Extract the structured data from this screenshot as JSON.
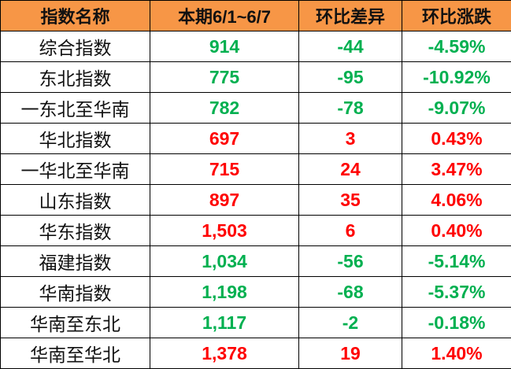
{
  "chart_data": {
    "type": "table",
    "columns": [
      "指数名称",
      "本期6/1~6/7",
      "环比差异",
      "环比涨跌"
    ],
    "rows": [
      {
        "name": "综合指数",
        "value": "914",
        "diff": "-44",
        "pct": "-4.59%",
        "trend": "down"
      },
      {
        "name": "东北指数",
        "value": "775",
        "diff": "-95",
        "pct": "-10.92%",
        "trend": "down"
      },
      {
        "name": "一东北至华南",
        "value": "782",
        "diff": "-78",
        "pct": "-9.07%",
        "trend": "down"
      },
      {
        "name": "华北指数",
        "value": "697",
        "diff": "3",
        "pct": "0.43%",
        "trend": "up"
      },
      {
        "name": "一华北至华南",
        "value": "715",
        "diff": "24",
        "pct": "3.47%",
        "trend": "up"
      },
      {
        "name": "山东指数",
        "value": "897",
        "diff": "35",
        "pct": "4.06%",
        "trend": "up"
      },
      {
        "name": "华东指数",
        "value": "1,503",
        "diff": "6",
        "pct": "0.40%",
        "trend": "up"
      },
      {
        "name": "福建指数",
        "value": "1,034",
        "diff": "-56",
        "pct": "-5.14%",
        "trend": "down"
      },
      {
        "name": "华南指数",
        "value": "1,198",
        "diff": "-68",
        "pct": "-5.37%",
        "trend": "down"
      },
      {
        "name": "华南至东北",
        "value": "1,117",
        "diff": "-2",
        "pct": "-0.18%",
        "trend": "down"
      },
      {
        "name": "华南至华北",
        "value": "1,378",
        "diff": "19",
        "pct": "1.40%",
        "trend": "up"
      }
    ],
    "colors": {
      "header_bg": "#f79646",
      "up": "#ff0000",
      "down": "#00b050"
    }
  }
}
